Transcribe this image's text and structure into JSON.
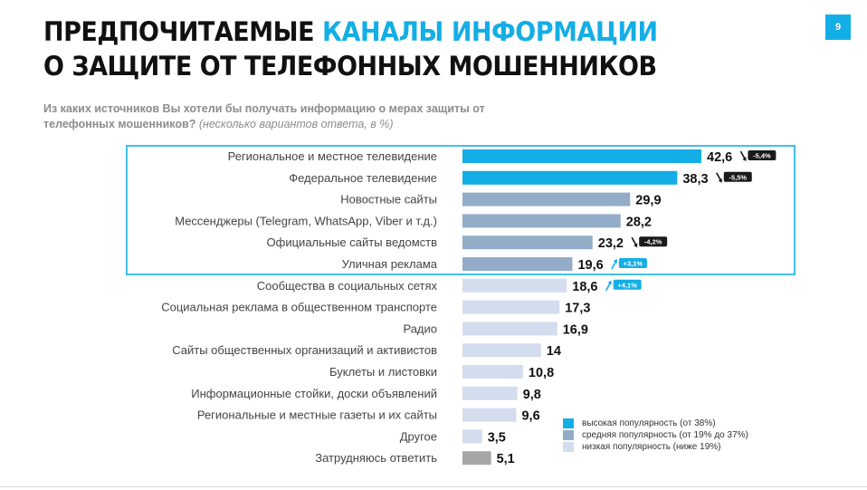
{
  "slide": {
    "title_line1_black": "ПРЕДПОЧИТАЕМЫЕ",
    "title_line1_accent": "КАНАЛЫ ИНФОРМАЦИИ",
    "title_line2": "О ЗАЩИТЕ ОТ ТЕЛЕФОННЫХ МОШЕННИКОВ",
    "page_number": "9",
    "question": "Из каких источников Вы хотели бы получать информацию о мерах защиты от телефонных мошенников?",
    "question_note": "(несколько вариантов ответа, в %)"
  },
  "colors": {
    "accent": "#14aee6",
    "high": "#14aee6",
    "medium": "#93adc8",
    "low": "#d3ddee",
    "other": "#a6a6a6",
    "change_badge": "#1a1a1a",
    "change_up_badge": "#14aee6"
  },
  "legend": [
    {
      "label": "высокая популярность (от 38%)",
      "color": "#14aee6"
    },
    {
      "label": "средняя популярность (от 19% до 37%)",
      "color": "#93adc8"
    },
    {
      "label": "низкая популярность (ниже 19%)",
      "color": "#d3ddee"
    }
  ],
  "chart_data": {
    "type": "bar",
    "orientation": "horizontal",
    "unit": "%",
    "xlim": [
      0,
      42.6
    ],
    "categories": [
      "Региональное и местное телевидение",
      "Федеральное телевидение",
      "Новостные сайты",
      "Мессенджеры (Telegram, WhatsApp, Viber и т.д.)",
      "Официальные сайты ведомств",
      "Уличная реклама",
      "Сообщества в социальных сетях",
      "Социальная реклама в общественном транспорте",
      "Радио",
      "Сайты общественных организаций и активистов",
      "Буклеты и листовки",
      "Информационные стойки, доски объявлений",
      "Региональные и местные газеты и их сайты",
      "Другое",
      "Затрудняюсь ответить"
    ],
    "values": [
      42.6,
      38.3,
      29.9,
      28.2,
      23.2,
      19.6,
      18.6,
      17.3,
      16.9,
      14,
      10.8,
      9.8,
      9.6,
      3.5,
      5.1
    ],
    "value_labels": [
      "42,6",
      "38,3",
      "29,9",
      "28,2",
      "23,2",
      "19,6",
      "18,6",
      "17,3",
      "16,9",
      "14",
      "10,8",
      "9,8",
      "9,6",
      "3,5",
      "5,1"
    ],
    "popularity": [
      "high",
      "high",
      "medium",
      "medium",
      "medium",
      "medium",
      "low",
      "low",
      "low",
      "low",
      "low",
      "low",
      "low",
      "low",
      "other"
    ],
    "changes": [
      {
        "index": 0,
        "label": "-5,4%",
        "direction": "down"
      },
      {
        "index": 1,
        "label": "-5,5%",
        "direction": "down"
      },
      {
        "index": 4,
        "label": "-4,2%",
        "direction": "down"
      },
      {
        "index": 5,
        "label": "+3,1%",
        "direction": "up"
      },
      {
        "index": 6,
        "label": "+4,1%",
        "direction": "up"
      }
    ],
    "highlighted_categories": [
      0,
      1,
      2,
      3,
      4,
      5
    ],
    "grid": false,
    "legend_position": "bottom-right"
  }
}
